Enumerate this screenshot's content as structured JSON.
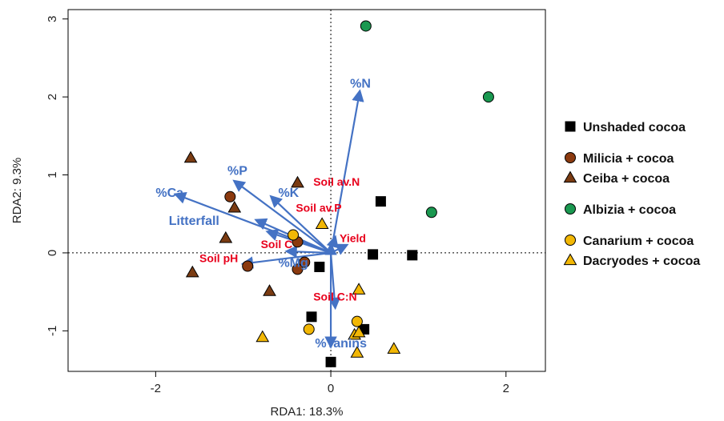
{
  "chart_data": {
    "type": "scatter",
    "title": "",
    "xlabel": "RDA1: 18.3%",
    "ylabel": "RDA2: 9.3%",
    "xlim": [
      -3.0,
      2.45
    ],
    "ylim": [
      -1.52,
      3.12
    ],
    "xticks": [
      -2,
      0,
      2
    ],
    "yticks": [
      -1,
      0,
      1,
      2,
      3
    ],
    "reference_lines": {
      "x": 0,
      "y": 0,
      "style": "dotted"
    },
    "legend_position": "right",
    "series": [
      {
        "name": "Unshaded cocoa",
        "marker": "square",
        "color": "#000000",
        "points": [
          [
            0.57,
            0.66
          ],
          [
            0.48,
            -0.02
          ],
          [
            0.93,
            -0.03
          ],
          [
            -0.13,
            -0.18
          ],
          [
            -0.22,
            -0.82
          ],
          [
            0.38,
            -0.98
          ],
          [
            0.0,
            -1.4
          ]
        ]
      },
      {
        "name": "Milicia + cocoa",
        "marker": "circle",
        "color": "#8B3A0F",
        "points": [
          [
            -1.15,
            0.72
          ],
          [
            -0.38,
            0.14
          ],
          [
            -0.3,
            -0.12
          ],
          [
            -0.38,
            -0.21
          ],
          [
            -0.95,
            -0.17
          ]
        ]
      },
      {
        "name": "Ceiba + cocoa",
        "marker": "triangle",
        "color": "#7A3B12",
        "points": [
          [
            -1.6,
            1.22
          ],
          [
            -1.1,
            0.58
          ],
          [
            -0.38,
            0.9
          ],
          [
            -1.2,
            0.19
          ],
          [
            -1.58,
            -0.25
          ],
          [
            -0.7,
            -0.49
          ]
        ]
      },
      {
        "name": "Albizia + cocoa",
        "marker": "circle",
        "color": "#1A9850",
        "points": [
          [
            0.4,
            2.91
          ],
          [
            1.8,
            2.0
          ],
          [
            1.15,
            0.52
          ]
        ]
      },
      {
        "name": "Canarium + cocoa",
        "marker": "circle",
        "color": "#F2B705",
        "points": [
          [
            -0.43,
            0.23
          ],
          [
            0.3,
            -0.88
          ],
          [
            -0.25,
            -0.98
          ]
        ]
      },
      {
        "name": "Dacryodes + cocoa",
        "marker": "triangle",
        "color": "#F2B705",
        "points": [
          [
            -0.1,
            0.37
          ],
          [
            0.32,
            -0.47
          ],
          [
            0.27,
            -1.05
          ],
          [
            0.32,
            -1.02
          ],
          [
            -0.78,
            -1.08
          ],
          [
            0.72,
            -1.23
          ],
          [
            0.3,
            -1.28
          ]
        ]
      }
    ],
    "vectors": [
      {
        "label": "%N",
        "x": 0.33,
        "y": 2.07,
        "color": "blue",
        "label_x": 0.22,
        "label_y": 2.12
      },
      {
        "label": "%P",
        "x": -1.1,
        "y": 0.92,
        "color": "blue",
        "label_x": -1.18,
        "label_y": 1.0
      },
      {
        "label": "%K",
        "x": -0.68,
        "y": 0.72,
        "color": "blue",
        "label_x": -0.6,
        "label_y": 0.72
      },
      {
        "label": "%Ca",
        "x": -1.77,
        "y": 0.75,
        "color": "blue",
        "label_x": -2.0,
        "label_y": 0.72
      },
      {
        "label": "Litterfall",
        "x": -0.85,
        "y": 0.42,
        "color": "blue",
        "label_x": -1.85,
        "label_y": 0.36
      },
      {
        "label": "%Mg",
        "x": -0.72,
        "y": 0.27,
        "color": "blue",
        "label_x": -0.6,
        "label_y": -0.18
      },
      {
        "label": "%Tanins",
        "x": 0.0,
        "y": -1.2,
        "color": "blue",
        "label_x": -0.18,
        "label_y": -1.21
      },
      {
        "label": "Soil av.N",
        "x": 0.05,
        "y": 0.2,
        "color": "red",
        "label_x": -0.2,
        "label_y": 0.86
      },
      {
        "label": "Soil av.P",
        "x": 0.0,
        "y": 0.1,
        "color": "red",
        "label_x": -0.4,
        "label_y": 0.53
      },
      {
        "label": "Yield",
        "x": 0.18,
        "y": 0.1,
        "color": "red",
        "label_x": 0.1,
        "label_y": 0.14
      },
      {
        "label": "Soil C",
        "x": -0.5,
        "y": 0.02,
        "color": "red",
        "label_x": -0.8,
        "label_y": 0.06
      },
      {
        "label": "Soil pH",
        "x": -1.0,
        "y": -0.14,
        "color": "red",
        "label_x": -1.5,
        "label_y": -0.12
      },
      {
        "label": "Soil C:N",
        "x": 0.05,
        "y": -0.7,
        "color": "red",
        "label_x": -0.2,
        "label_y": -0.61
      }
    ],
    "legend_groups": [
      [
        "Unshaded cocoa"
      ],
      [
        "Milicia + cocoa",
        "Ceiba + cocoa"
      ],
      [
        "Albizia + cocoa"
      ],
      [
        "Canarium + cocoa",
        "Dacryodes + cocoa"
      ]
    ],
    "colors": {
      "vector_blue": "#4472C4",
      "vector_red": "#E8001C",
      "marker_stroke": "#000000"
    }
  }
}
